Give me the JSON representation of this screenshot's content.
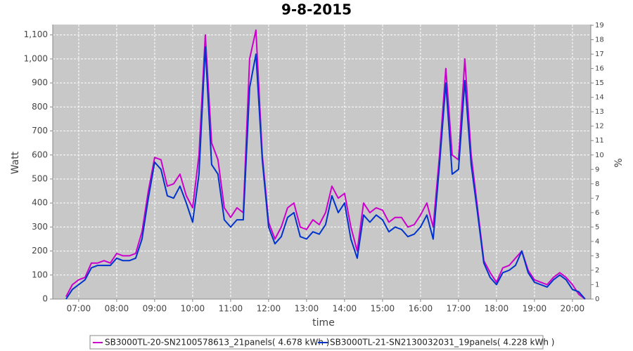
{
  "chart_data": {
    "type": "line",
    "title": "9-8-2015",
    "x_label": "time",
    "y_label": "Watt",
    "y2_label": "%",
    "grid": true,
    "legend": "bottom",
    "xlim": [
      379,
      1229
    ],
    "xticks": [
      {
        "value": 420,
        "label": "07:00"
      },
      {
        "value": 480,
        "label": "08:00"
      },
      {
        "value": 540,
        "label": "09:00"
      },
      {
        "value": 600,
        "label": "10:00"
      },
      {
        "value": 660,
        "label": "11:00"
      },
      {
        "value": 720,
        "label": "12:00"
      },
      {
        "value": 780,
        "label": "13:00"
      },
      {
        "value": 840,
        "label": "14:00"
      },
      {
        "value": 900,
        "label": "15:00"
      },
      {
        "value": 960,
        "label": "16:00"
      },
      {
        "value": 1020,
        "label": "17:00"
      },
      {
        "value": 1080,
        "label": "18:00"
      },
      {
        "value": 1140,
        "label": "19:00"
      },
      {
        "value": 1200,
        "label": "20:00"
      }
    ],
    "ylim": [
      0,
      1143
    ],
    "yticks": [
      0,
      100,
      200,
      300,
      400,
      500,
      600,
      700,
      800,
      900,
      {
        "value": 1000,
        "label": "1,000"
      },
      {
        "value": 1100,
        "label": "1,100"
      }
    ],
    "y2lim": [
      0,
      19.05
    ],
    "y2ticks": [
      0,
      1,
      2,
      3,
      4,
      5,
      6,
      7,
      8,
      9,
      10,
      11,
      12,
      13,
      14,
      15,
      16,
      17,
      18,
      19
    ],
    "x": [
      400,
      410,
      420,
      430,
      440,
      450,
      460,
      470,
      480,
      490,
      500,
      510,
      520,
      530,
      540,
      550,
      560,
      570,
      580,
      590,
      600,
      610,
      620,
      630,
      640,
      650,
      660,
      670,
      680,
      690,
      700,
      710,
      720,
      730,
      740,
      750,
      760,
      770,
      780,
      790,
      800,
      810,
      820,
      830,
      840,
      850,
      860,
      870,
      880,
      890,
      900,
      910,
      920,
      930,
      940,
      950,
      960,
      970,
      980,
      990,
      1000,
      1010,
      1020,
      1030,
      1040,
      1050,
      1060,
      1070,
      1080,
      1090,
      1100,
      1110,
      1120,
      1130,
      1140,
      1150,
      1160,
      1170,
      1180,
      1190,
      1200,
      1210,
      1220
    ],
    "series": [
      {
        "name": "SB3000TL-20-SN2100578613_21panels( 4.678 kWh )",
        "color": "#cc00cc",
        "values": [
          10,
          60,
          80,
          90,
          150,
          150,
          160,
          150,
          190,
          180,
          180,
          190,
          280,
          450,
          590,
          580,
          470,
          480,
          520,
          430,
          380,
          600,
          1100,
          650,
          580,
          380,
          340,
          380,
          360,
          1000,
          1120,
          600,
          320,
          250,
          300,
          380,
          400,
          300,
          290,
          330,
          310,
          360,
          470,
          420,
          440,
          300,
          200,
          400,
          360,
          380,
          370,
          320,
          340,
          340,
          300,
          310,
          350,
          400,
          300,
          600,
          960,
          600,
          580,
          1000,
          600,
          380,
          160,
          110,
          70,
          130,
          140,
          170,
          200,
          120,
          80,
          70,
          60,
          90,
          110,
          90,
          60,
          20,
          0
        ]
      },
      {
        "name": "SB3000TL-21-SN2130032031_19panels( 4.228 kWh )",
        "color": "#0033cc",
        "values": [
          0,
          40,
          60,
          80,
          130,
          140,
          140,
          140,
          170,
          160,
          160,
          170,
          250,
          420,
          570,
          540,
          430,
          420,
          470,
          400,
          320,
          520,
          1050,
          560,
          520,
          330,
          300,
          330,
          330,
          880,
          1020,
          580,
          300,
          230,
          260,
          340,
          360,
          260,
          250,
          280,
          270,
          310,
          430,
          360,
          400,
          250,
          170,
          350,
          320,
          350,
          330,
          280,
          300,
          290,
          260,
          270,
          300,
          350,
          250,
          560,
          900,
          520,
          540,
          910,
          560,
          360,
          150,
          90,
          60,
          110,
          120,
          140,
          200,
          110,
          70,
          60,
          50,
          80,
          100,
          80,
          40,
          30,
          0
        ]
      }
    ]
  }
}
